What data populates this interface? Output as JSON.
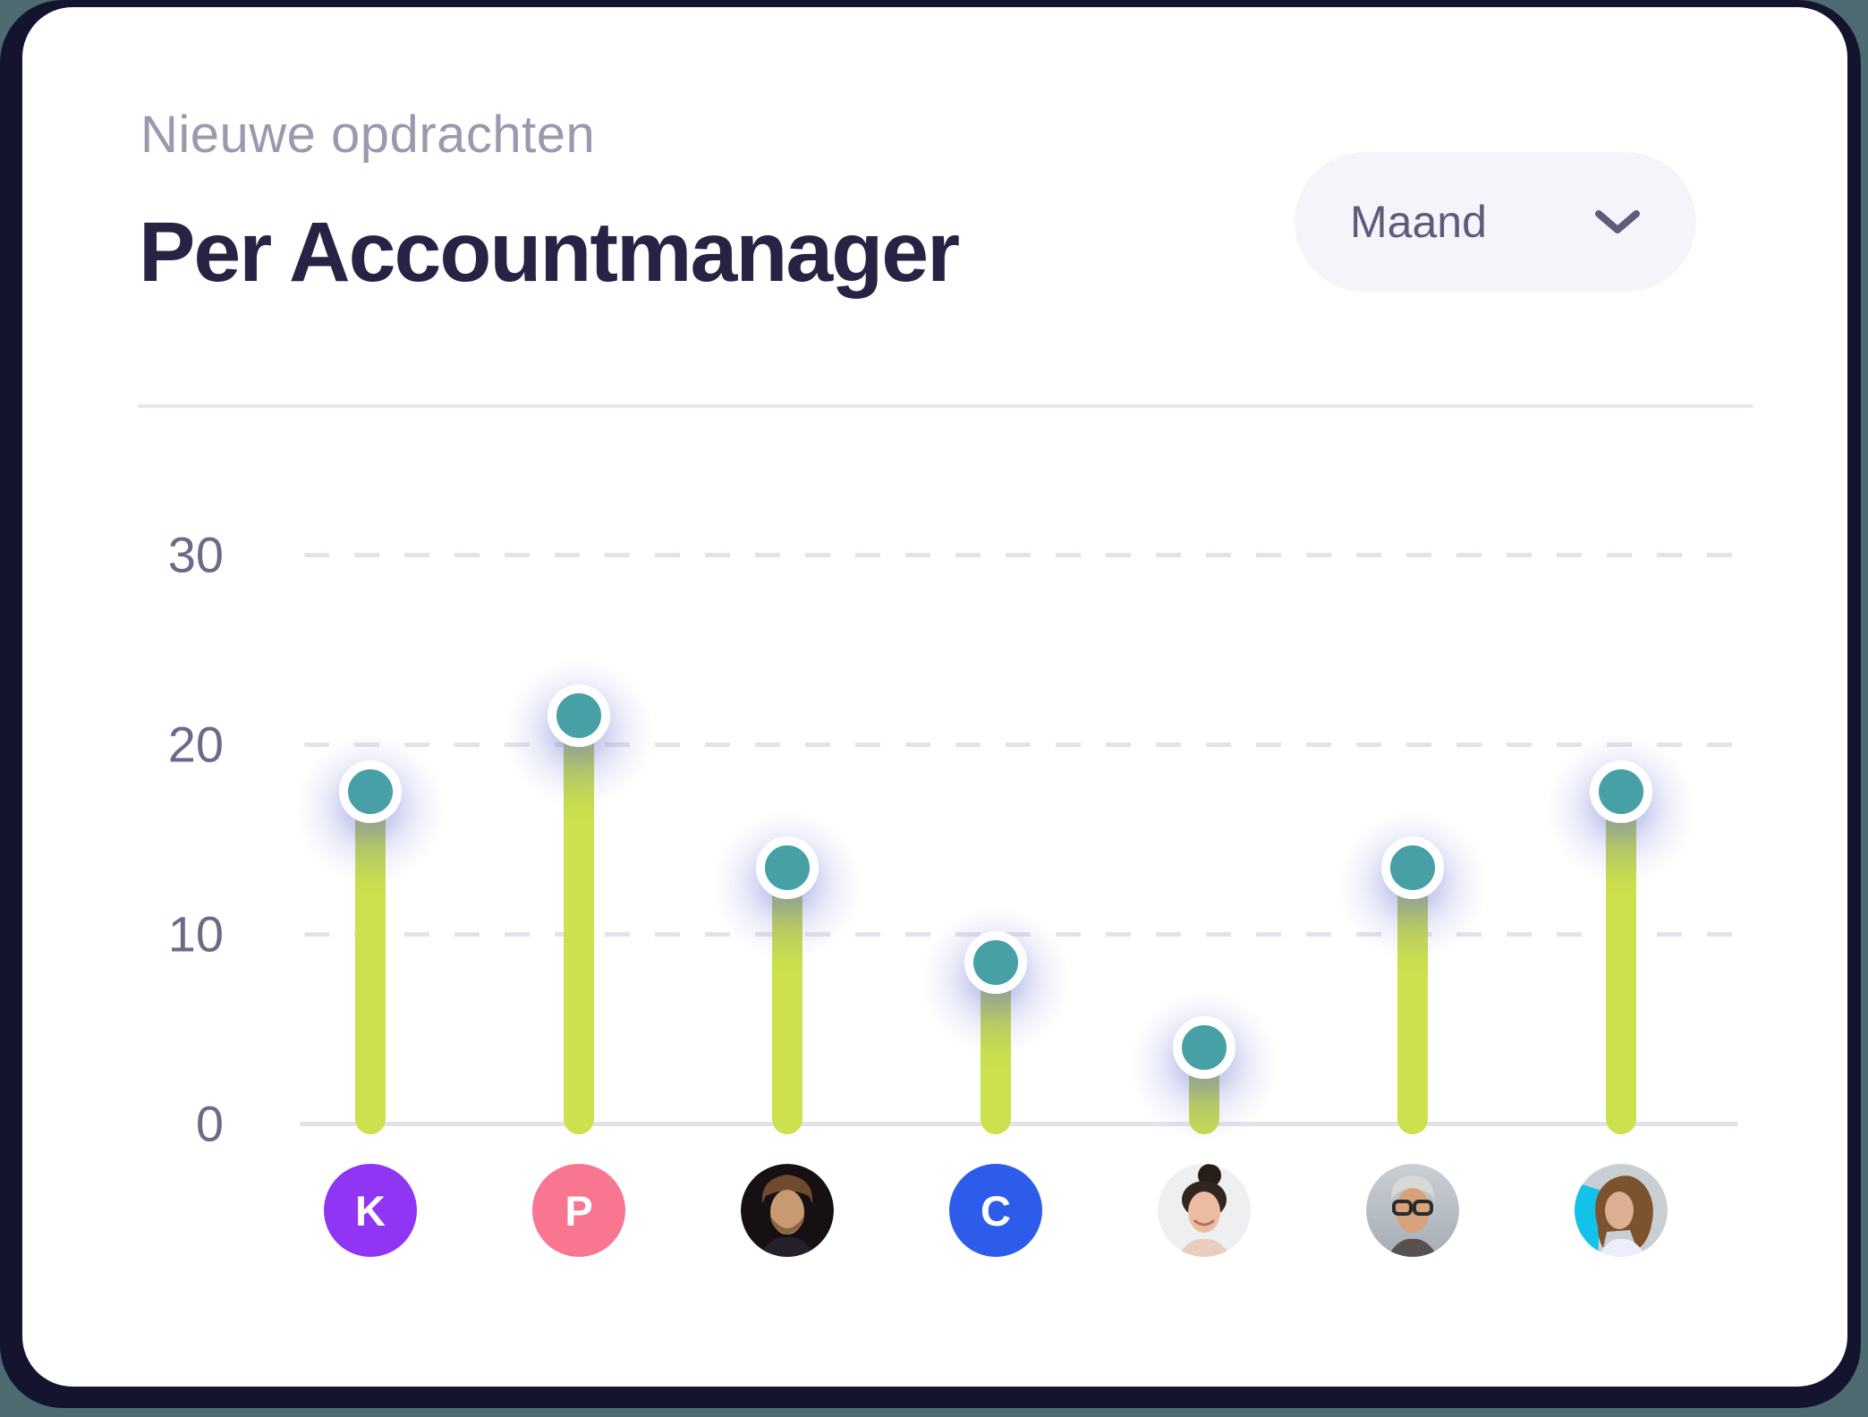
{
  "header": {
    "subtitle": "Nieuwe opdrachten",
    "title": "Per Accountmanager",
    "period_selector": {
      "value": "Maand",
      "icon": "chevron-down-icon"
    }
  },
  "chart_data": {
    "type": "bar",
    "variant": "lollipop",
    "title": "Nieuwe opdrachten per accountmanager",
    "categories": [
      "K",
      "P",
      "photo: man on dark background",
      "C",
      "photo: woman with top bun",
      "photo: older man with glasses",
      "photo: woman on cyan background"
    ],
    "values": [
      17.5,
      21.5,
      13.5,
      8.5,
      4,
      13.5,
      17.5
    ],
    "yticks": [
      30,
      20,
      10,
      0
    ],
    "ylim": [
      0,
      33
    ],
    "xlabel": "",
    "ylabel": "",
    "grid": "dashed-horizontal gridlines at 10/20/30, solid baseline at 0",
    "legend": "none",
    "bar_color": "#cde04d",
    "dot_color": "#47a0a5"
  },
  "managers": [
    {
      "label": "K",
      "avatar_type": "initial",
      "color": "#8f35f3"
    },
    {
      "label": "P",
      "avatar_type": "initial",
      "color": "#f8768f"
    },
    {
      "label": "",
      "avatar_type": "photo",
      "photo": "man-dark-bg"
    },
    {
      "label": "C",
      "avatar_type": "initial",
      "color": "#2e5cea"
    },
    {
      "label": "",
      "avatar_type": "photo",
      "photo": "woman-top-bun"
    },
    {
      "label": "",
      "avatar_type": "photo",
      "photo": "man-gray-glasses"
    },
    {
      "label": "",
      "avatar_type": "photo",
      "photo": "woman-cyan-bg"
    }
  ],
  "colors": {
    "page_bg": "#4d6b71",
    "frame_bg": "#14142e",
    "card_bg": "#ffffff",
    "title": "#272345",
    "subtitle": "#9c99ae",
    "pill_bg": "#f4f5fa",
    "pill_text": "#5e5b7b",
    "divider": "#e7e6ef",
    "grid": "#e3e2ec",
    "tick": "#6d6a89",
    "green": "#cde04d",
    "teal": "#47a0a5"
  }
}
